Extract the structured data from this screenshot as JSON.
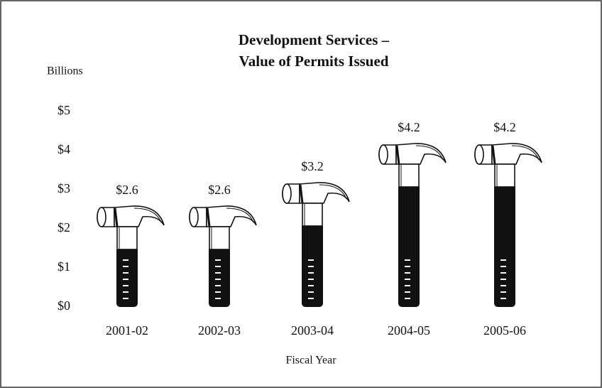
{
  "chart_data": {
    "type": "pictograph",
    "title": [
      "Development Services –",
      "Value of Permits Issued"
    ],
    "y_unit_label": "Billions",
    "x_label": "Fiscal Year",
    "categories": [
      "2001-02",
      "2002-03",
      "2003-04",
      "2004-05",
      "2005-06"
    ],
    "values": [
      2.6,
      2.6,
      3.2,
      4.2,
      4.2
    ],
    "value_labels": [
      "$2.6",
      "$2.6",
      "$3.2",
      "$4.2",
      "$4.2"
    ],
    "ylim": [
      0,
      5
    ],
    "yticks": [
      {
        "value": 0,
        "label": "$0"
      },
      {
        "value": 1,
        "label": "$1"
      },
      {
        "value": 2,
        "label": "$2"
      },
      {
        "value": 3,
        "label": "$3"
      },
      {
        "value": 4,
        "label": "$4"
      },
      {
        "value": 5,
        "label": "$5"
      }
    ],
    "grid": false,
    "color": "#111111"
  }
}
